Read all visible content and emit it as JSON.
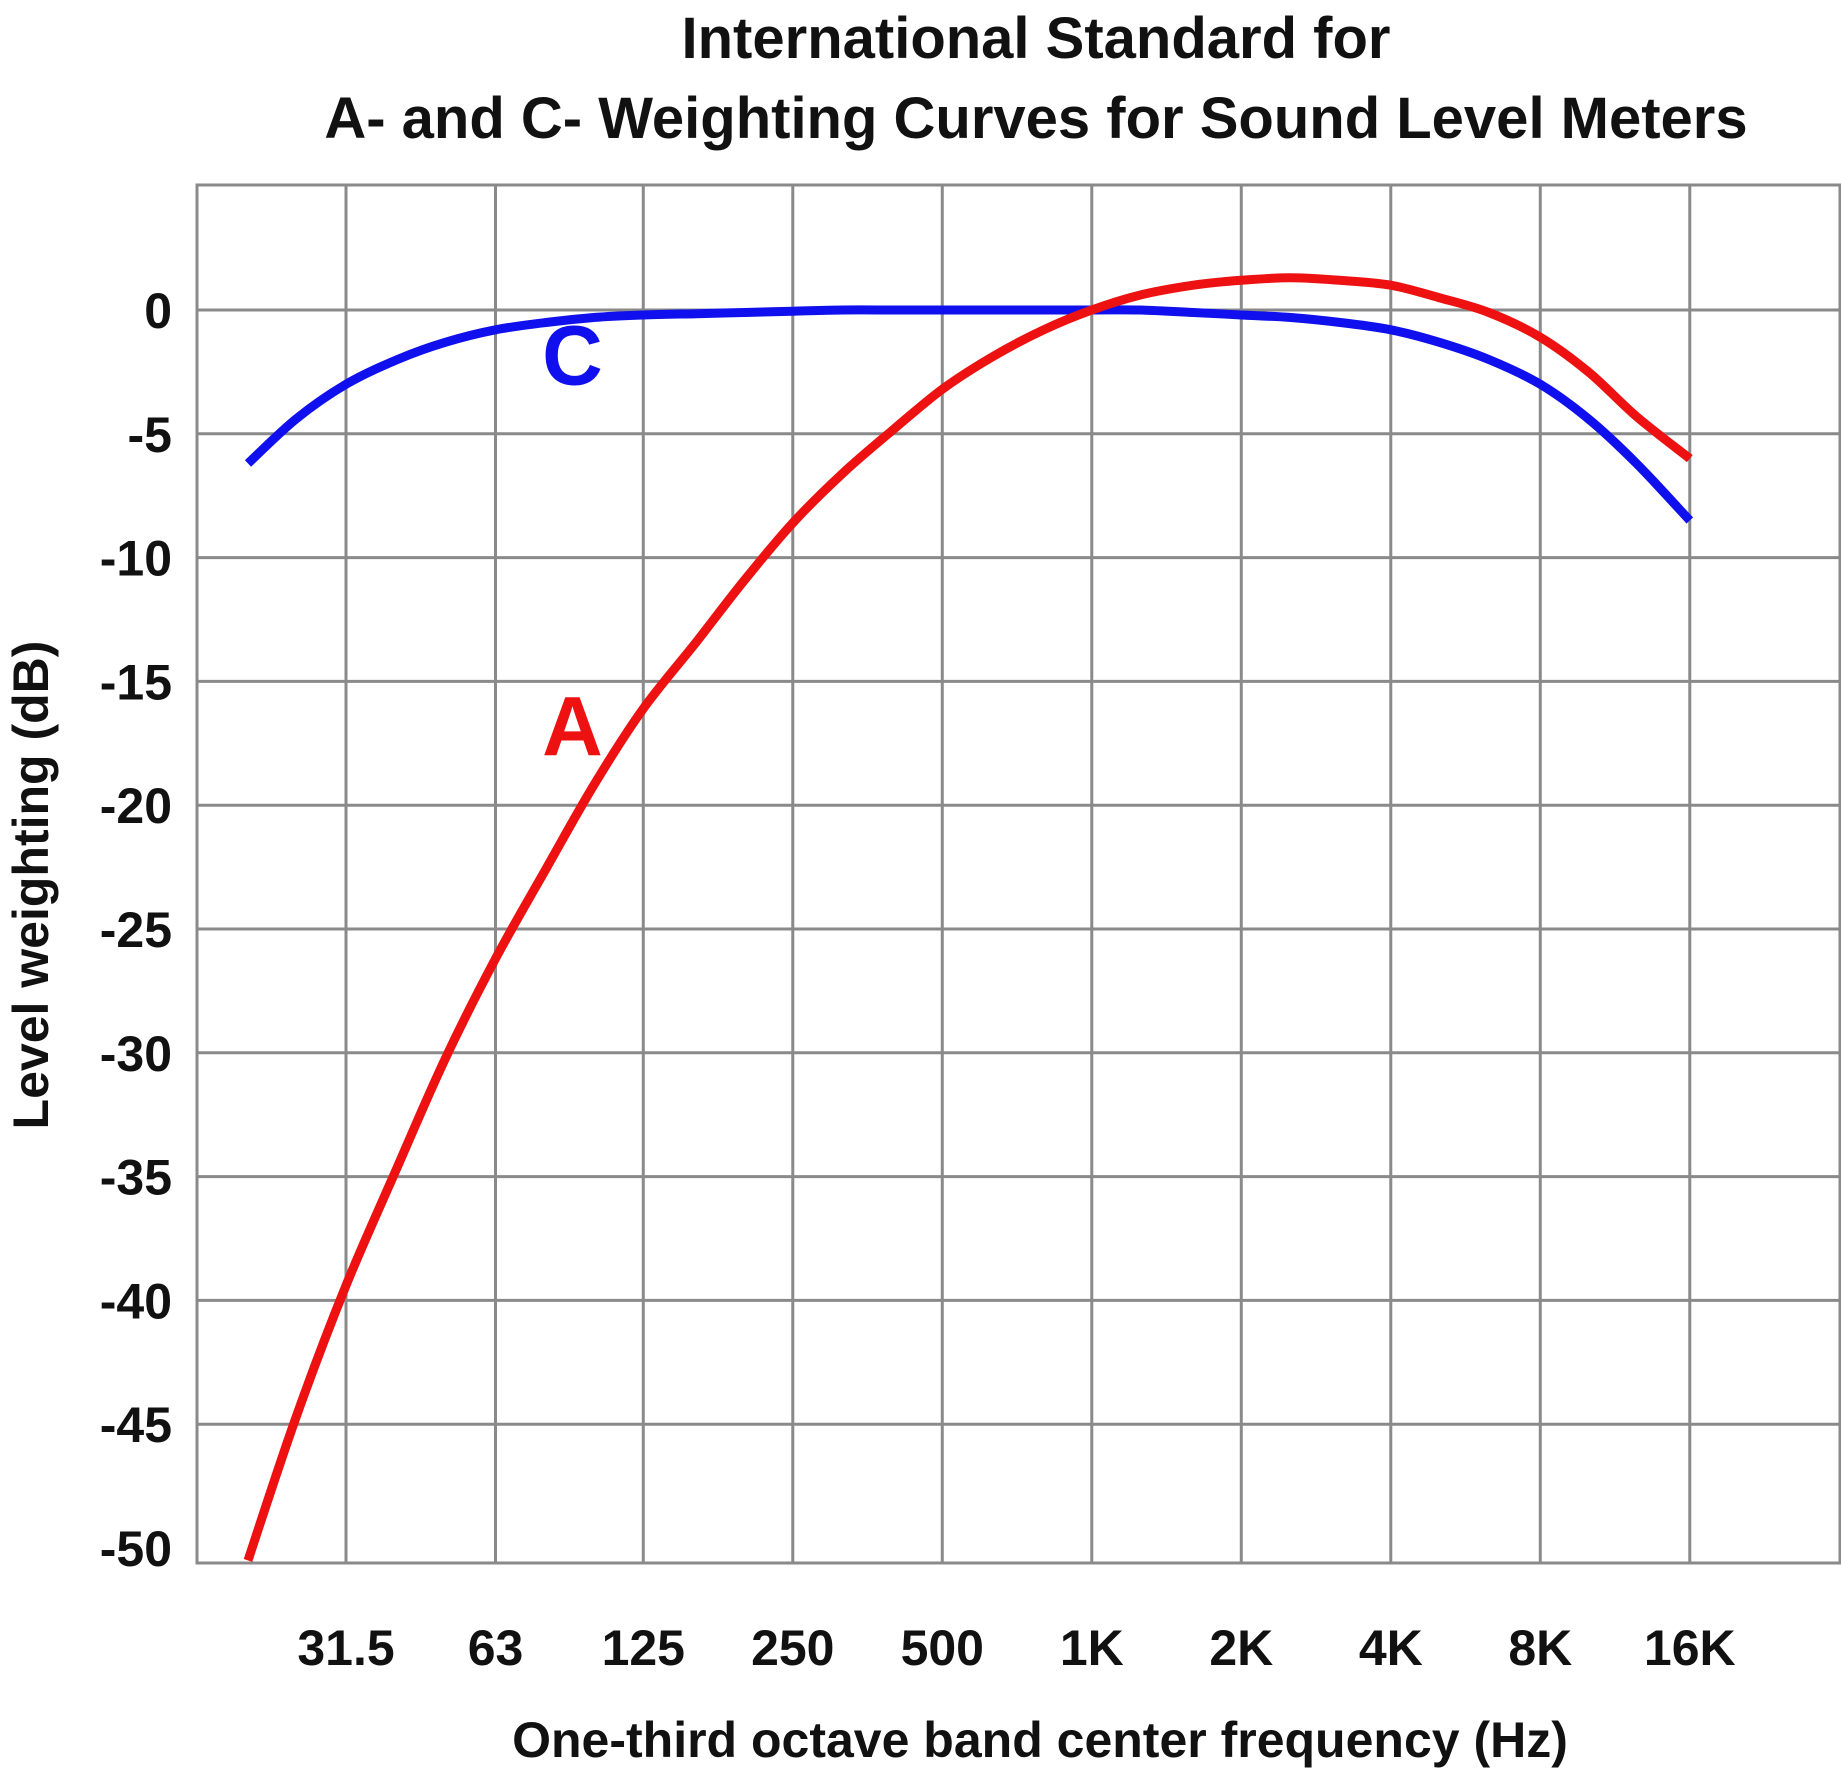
{
  "chart_data": {
    "type": "line",
    "title": [
      "International Standard for",
      "A- and C- Weighting Curves for Sound Level Meters"
    ],
    "xlabel": "One-third octave band center frequency (Hz)",
    "ylabel": "Level weighting (dB)",
    "x_scale": "log2",
    "xlim": [
      16,
      32000
    ],
    "ylim": [
      -50,
      5
    ],
    "grid": true,
    "x_ticks": [
      {
        "value": 31.5,
        "label": "31.5"
      },
      {
        "value": 63,
        "label": "63"
      },
      {
        "value": 125,
        "label": "125"
      },
      {
        "value": 250,
        "label": "250"
      },
      {
        "value": 500,
        "label": "500"
      },
      {
        "value": 1000,
        "label": "1K"
      },
      {
        "value": 2000,
        "label": "2K"
      },
      {
        "value": 4000,
        "label": "4K"
      },
      {
        "value": 8000,
        "label": "8K"
      },
      {
        "value": 16000,
        "label": "16K"
      }
    ],
    "y_ticks": [
      {
        "value": 0,
        "label": "0"
      },
      {
        "value": -5,
        "label": "-5"
      },
      {
        "value": -10,
        "label": "-10"
      },
      {
        "value": -15,
        "label": "-15"
      },
      {
        "value": -20,
        "label": "-20"
      },
      {
        "value": -25,
        "label": "-25"
      },
      {
        "value": -30,
        "label": "-30"
      },
      {
        "value": -35,
        "label": "-35"
      },
      {
        "value": -40,
        "label": "-40"
      },
      {
        "value": -45,
        "label": "-45"
      },
      {
        "value": -50,
        "label": "-50"
      }
    ],
    "series": [
      {
        "name": "C",
        "label": "C",
        "color": "#1010ee",
        "label_at": {
          "x": 90,
          "y": -3.0
        },
        "points": [
          {
            "x": 20,
            "y": -6.2
          },
          {
            "x": 25,
            "y": -4.4
          },
          {
            "x": 31.5,
            "y": -3.0
          },
          {
            "x": 40,
            "y": -2.0
          },
          {
            "x": 50,
            "y": -1.3
          },
          {
            "x": 63,
            "y": -0.8
          },
          {
            "x": 80,
            "y": -0.5
          },
          {
            "x": 100,
            "y": -0.3
          },
          {
            "x": 125,
            "y": -0.2
          },
          {
            "x": 160,
            "y": -0.15
          },
          {
            "x": 200,
            "y": -0.1
          },
          {
            "x": 250,
            "y": -0.05
          },
          {
            "x": 315,
            "y": 0.0
          },
          {
            "x": 400,
            "y": 0.0
          },
          {
            "x": 500,
            "y": 0.0
          },
          {
            "x": 630,
            "y": 0.0
          },
          {
            "x": 800,
            "y": 0.0
          },
          {
            "x": 1000,
            "y": 0.0
          },
          {
            "x": 1250,
            "y": 0.0
          },
          {
            "x": 1600,
            "y": -0.1
          },
          {
            "x": 2000,
            "y": -0.2
          },
          {
            "x": 2500,
            "y": -0.3
          },
          {
            "x": 3150,
            "y": -0.5
          },
          {
            "x": 4000,
            "y": -0.8
          },
          {
            "x": 5000,
            "y": -1.3
          },
          {
            "x": 6300,
            "y": -2.0
          },
          {
            "x": 8000,
            "y": -3.0
          },
          {
            "x": 10000,
            "y": -4.4
          },
          {
            "x": 12500,
            "y": -6.2
          },
          {
            "x": 16000,
            "y": -8.5
          }
        ]
      },
      {
        "name": "A",
        "label": "A",
        "color": "#ee1111",
        "label_at": {
          "x": 90,
          "y": -18.0
        },
        "points": [
          {
            "x": 20,
            "y": -50.5
          },
          {
            "x": 25,
            "y": -44.7
          },
          {
            "x": 31.5,
            "y": -39.4
          },
          {
            "x": 40,
            "y": -34.6
          },
          {
            "x": 50,
            "y": -30.2
          },
          {
            "x": 63,
            "y": -26.2
          },
          {
            "x": 80,
            "y": -22.5
          },
          {
            "x": 100,
            "y": -19.1
          },
          {
            "x": 125,
            "y": -16.1
          },
          {
            "x": 160,
            "y": -13.4
          },
          {
            "x": 200,
            "y": -10.9
          },
          {
            "x": 250,
            "y": -8.6
          },
          {
            "x": 315,
            "y": -6.6
          },
          {
            "x": 400,
            "y": -4.8
          },
          {
            "x": 500,
            "y": -3.2
          },
          {
            "x": 630,
            "y": -1.9
          },
          {
            "x": 800,
            "y": -0.8
          },
          {
            "x": 1000,
            "y": 0.0
          },
          {
            "x": 1250,
            "y": 0.6
          },
          {
            "x": 1600,
            "y": 1.0
          },
          {
            "x": 2000,
            "y": 1.2
          },
          {
            "x": 2500,
            "y": 1.3
          },
          {
            "x": 3150,
            "y": 1.2
          },
          {
            "x": 4000,
            "y": 1.0
          },
          {
            "x": 5000,
            "y": 0.5
          },
          {
            "x": 6300,
            "y": -0.1
          },
          {
            "x": 8000,
            "y": -1.1
          },
          {
            "x": 10000,
            "y": -2.5
          },
          {
            "x": 12500,
            "y": -4.3
          },
          {
            "x": 16000,
            "y": -6.0
          }
        ]
      }
    ]
  }
}
